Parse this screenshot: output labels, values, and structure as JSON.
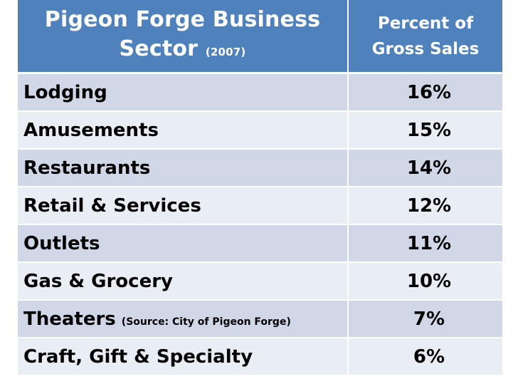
{
  "table": {
    "header": {
      "sector_line1": "Pigeon Forge Business",
      "sector_line2": "Sector",
      "sector_year": "(2007)",
      "percent_line1": "Percent of",
      "percent_line2": "Gross Sales"
    },
    "rows": [
      {
        "sector": "Lodging",
        "note": "",
        "percent": "16%"
      },
      {
        "sector": "Amusements",
        "note": "",
        "percent": "15%"
      },
      {
        "sector": "Restaurants",
        "note": "",
        "percent": "14%"
      },
      {
        "sector": "Retail & Services",
        "note": "",
        "percent": "12%"
      },
      {
        "sector": "Outlets",
        "note": "",
        "percent": "11%"
      },
      {
        "sector": "Gas & Grocery",
        "note": "",
        "percent": "10%"
      },
      {
        "sector": "Theaters",
        "note": "(Source: City of Pigeon Forge)",
        "percent": "7%"
      },
      {
        "sector": "Craft, Gift & Specialty",
        "note": "",
        "percent": "6%"
      }
    ]
  },
  "colors": {
    "header_bg": "#4f81bd",
    "row_dark": "#d0d8e8",
    "row_light": "#e9edf4"
  }
}
